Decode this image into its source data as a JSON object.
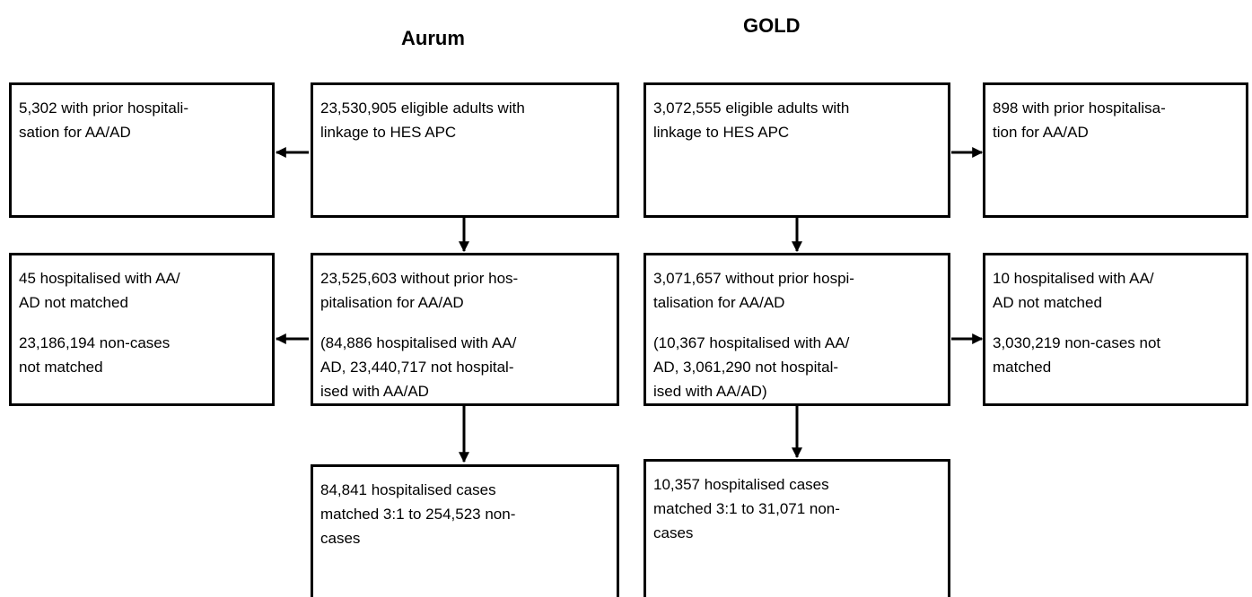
{
  "titles": {
    "aurum": "Aurum",
    "gold": "GOLD"
  },
  "nodes": [
    {
      "paragraphs": [
        [
          "5,302 with prior hospitali-",
          "sation for AA/AD"
        ]
      ]
    },
    {
      "paragraphs": [
        [
          "23,530,905 eligible adults with",
          "linkage to HES APC"
        ]
      ]
    },
    {
      "paragraphs": [
        [
          "3,072,555 eligible adults with",
          "linkage to HES APC"
        ]
      ]
    },
    {
      "paragraphs": [
        [
          "898 with prior hospitalisa-",
          "tion for AA/AD"
        ]
      ]
    },
    {
      "paragraphs": [
        [
          "45 hospitalised with AA/",
          "AD not matched"
        ],
        [
          "23,186,194 non-cases",
          "not matched"
        ]
      ]
    },
    {
      "paragraphs": [
        [
          "23,525,603 without prior hos-",
          "pitalisation for AA/AD"
        ],
        [
          "(84,886 hospitalised with AA/",
          "AD, 23,440,717 not hospital-",
          "ised with AA/AD"
        ]
      ]
    },
    {
      "paragraphs": [
        [
          "3,071,657 without prior hospi-",
          "talisation for AA/AD"
        ],
        [
          "(10,367 hospitalised with AA/",
          "AD, 3,061,290 not hospital-",
          "ised with AA/AD)"
        ]
      ]
    },
    {
      "paragraphs": [
        [
          "10 hospitalised with AA/",
          "AD not matched"
        ],
        [
          "3,030,219 non-cases not",
          "matched"
        ]
      ]
    },
    {
      "paragraphs": [
        [
          "84,841 hospitalised cases",
          "matched 3:1 to 254,523 non-",
          "cases"
        ]
      ]
    },
    {
      "paragraphs": [
        [
          "10,357 hospitalised cases",
          "matched 3:1 to 31,071 non-",
          "cases"
        ]
      ]
    }
  ]
}
